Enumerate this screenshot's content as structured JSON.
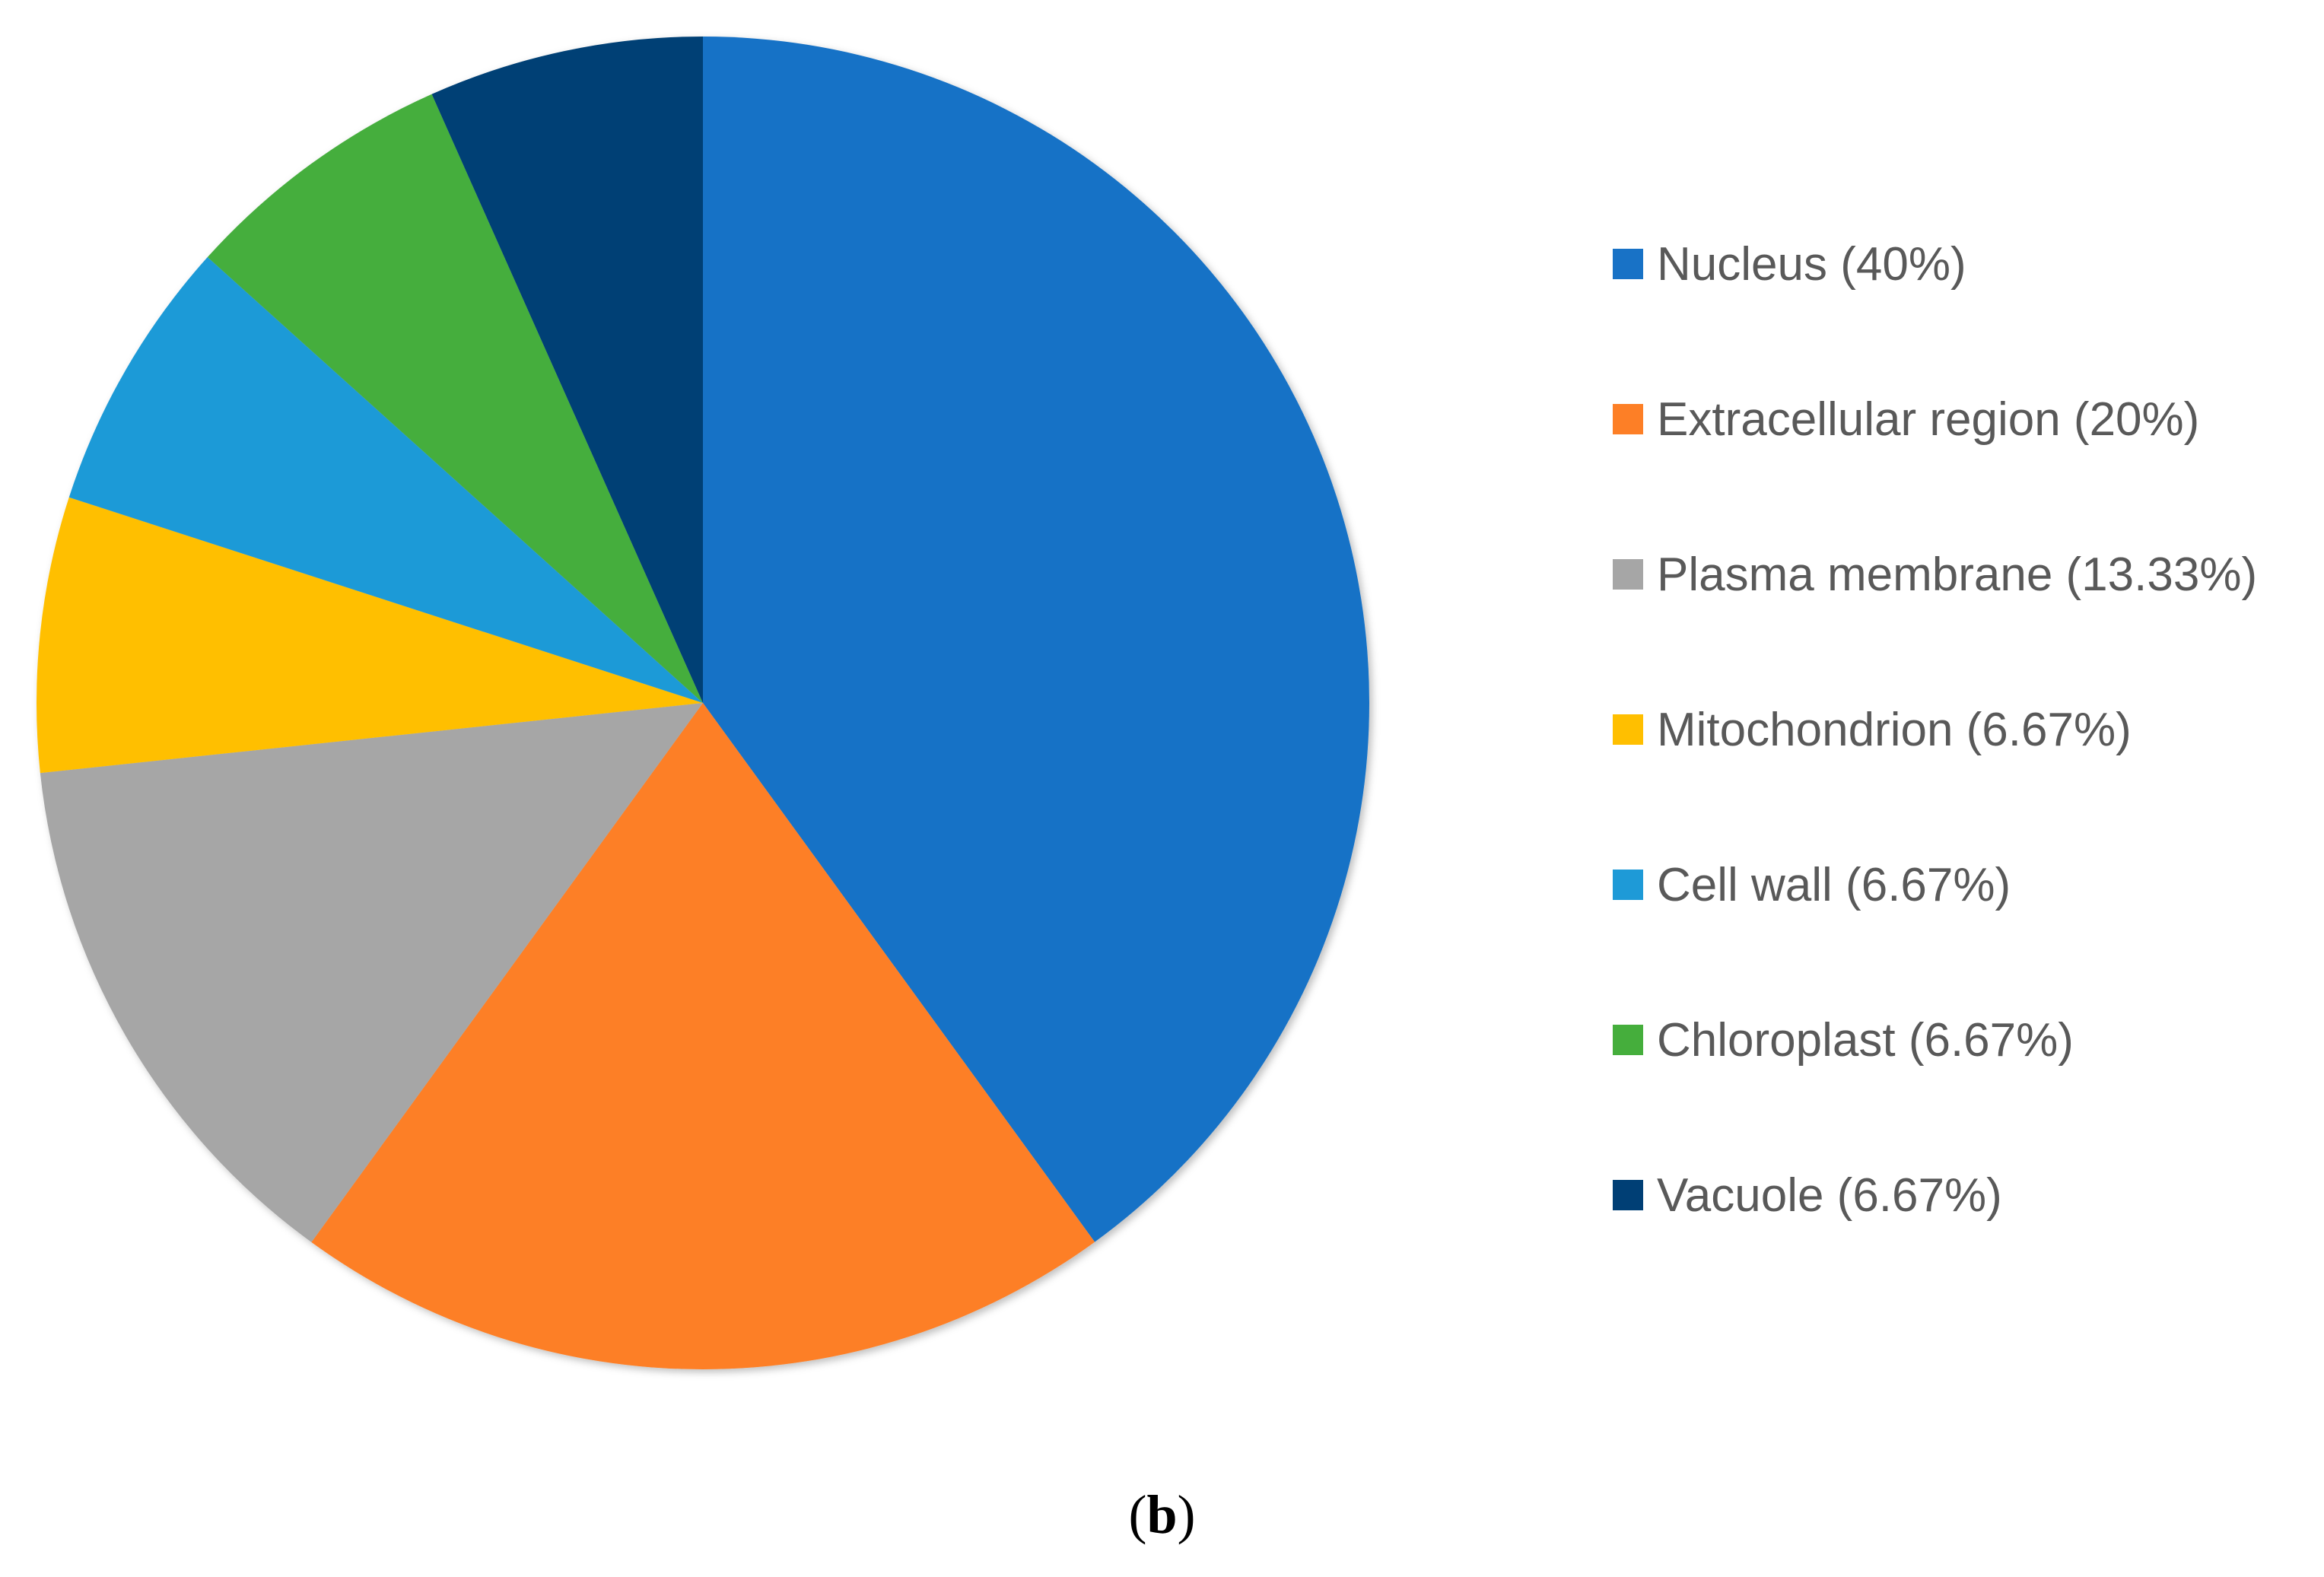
{
  "chart_data": {
    "type": "pie",
    "start_angle_deg": 0,
    "direction": "clockwise",
    "slices": [
      {
        "label": "Nucleus (40%)",
        "value": 40,
        "color": "#1872C6"
      },
      {
        "label": "Extracellular region (20%)",
        "value": 20,
        "color": "#FD7F26"
      },
      {
        "label": "Plasma membrane (13.33%)",
        "value": 13.33,
        "color": "#A6A6A6"
      },
      {
        "label": "Mitochondrion (6.67%)",
        "value": 6.67,
        "color": "#FFBF00"
      },
      {
        "label": "Cell wall (6.67%)",
        "value": 6.67,
        "color": "#1E9AD7"
      },
      {
        "label": "Chloroplast (6.67%)",
        "value": 6.67,
        "color": "#45AE3C"
      },
      {
        "label": "Vacuole (6.67%)",
        "value": 6.67,
        "color": "#003F75"
      }
    ],
    "legend_position": "right"
  },
  "panel_label": {
    "open": "(",
    "letter": "b",
    "close": ")"
  }
}
